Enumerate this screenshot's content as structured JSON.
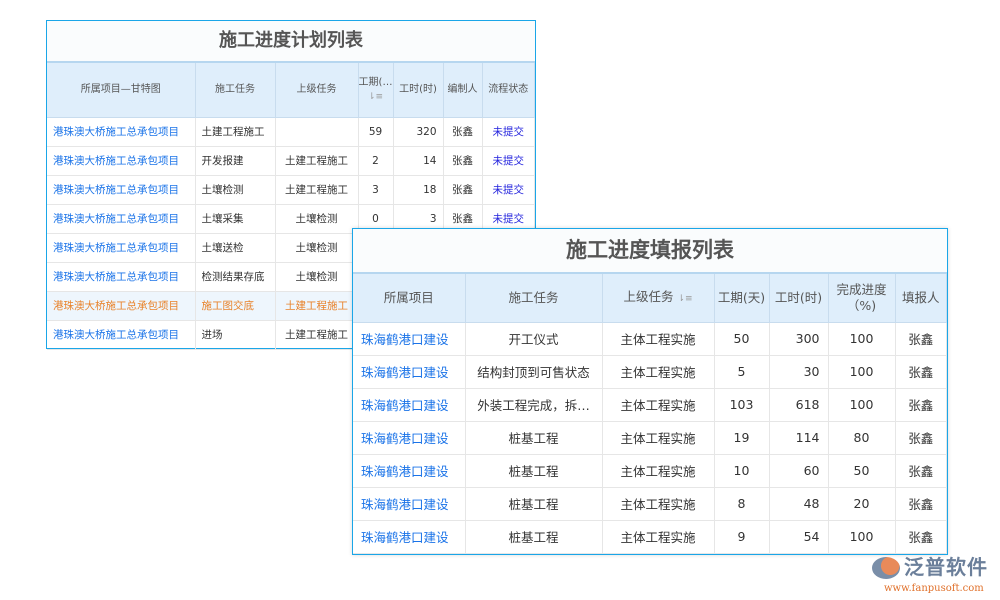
{
  "plan": {
    "title": "施工进度计划列表",
    "headers": [
      "所属项目—甘特图",
      "施工任务",
      "上级任务",
      "工期(…",
      "工时(时)",
      "编制人",
      "流程状态"
    ],
    "rows": [
      [
        "港珠澳大桥施工总承包项目",
        "土建工程施工",
        "",
        "59",
        "320",
        "张鑫",
        "未提交"
      ],
      [
        "港珠澳大桥施工总承包项目",
        "开发报建",
        "土建工程施工",
        "2",
        "14",
        "张鑫",
        "未提交"
      ],
      [
        "港珠澳大桥施工总承包项目",
        "土壤检测",
        "土建工程施工",
        "3",
        "18",
        "张鑫",
        "未提交"
      ],
      [
        "港珠澳大桥施工总承包项目",
        "土壤采集",
        "土壤检测",
        "0",
        "3",
        "张鑫",
        "未提交"
      ],
      [
        "港珠澳大桥施工总承包项目",
        "土壤送检",
        "土壤检测",
        "",
        "",
        "",
        ""
      ],
      [
        "港珠澳大桥施工总承包项目",
        "检测结果存底",
        "土壤检测",
        "",
        "",
        "",
        ""
      ],
      [
        "港珠澳大桥施工总承包项目",
        "施工图交底",
        "土建工程施工",
        "",
        "",
        "",
        ""
      ],
      [
        "港珠澳大桥施工总承包项目",
        "进场",
        "土建工程施工",
        "",
        "",
        "",
        ""
      ]
    ],
    "highlighted_row": 6
  },
  "report": {
    "title": "施工进度填报列表",
    "headers": [
      "所属项目",
      "施工任务",
      "上级任务",
      "工期(天)",
      "工时(时)",
      "完成进度（%)",
      "填报人"
    ],
    "rows": [
      [
        "珠海鹤港口建设",
        "开工仪式",
        "主体工程实施",
        "50",
        "300",
        "100",
        "张鑫"
      ],
      [
        "珠海鹤港口建设",
        "结构封顶到可售状态",
        "主体工程实施",
        "5",
        "30",
        "100",
        "张鑫"
      ],
      [
        "珠海鹤港口建设",
        "外装工程完成，拆…",
        "主体工程实施",
        "103",
        "618",
        "100",
        "张鑫"
      ],
      [
        "珠海鹤港口建设",
        "桩基工程",
        "主体工程实施",
        "19",
        "114",
        "80",
        "张鑫"
      ],
      [
        "珠海鹤港口建设",
        "桩基工程",
        "主体工程实施",
        "10",
        "60",
        "50",
        "张鑫"
      ],
      [
        "珠海鹤港口建设",
        "桩基工程",
        "主体工程实施",
        "8",
        "48",
        "20",
        "张鑫"
      ],
      [
        "珠海鹤港口建设",
        "桩基工程",
        "主体工程实施",
        "9",
        "54",
        "100",
        "张鑫"
      ]
    ]
  },
  "logo": {
    "name": "泛普软件",
    "url": "www.fanpusoft.com"
  }
}
